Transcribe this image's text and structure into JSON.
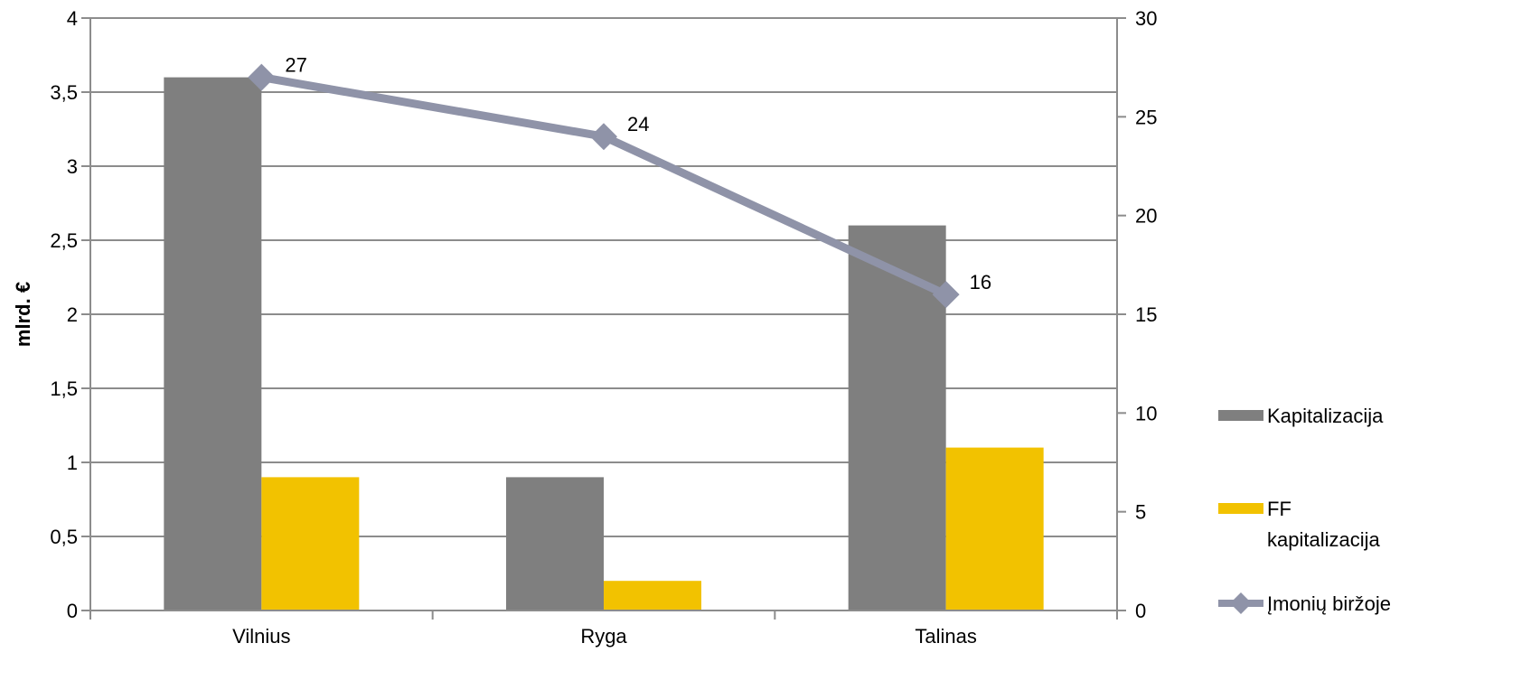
{
  "chart_data": {
    "type": "bar",
    "categories": [
      "Vilnius",
      "Ryga",
      "Talinas"
    ],
    "series": [
      {
        "name": "Kapitalizacija",
        "kind": "bar",
        "axis": "left",
        "color": "#7f7f7f",
        "values": [
          3.6,
          0.9,
          2.6
        ]
      },
      {
        "name": "FF kapitalizacija",
        "kind": "bar",
        "axis": "left",
        "color": "#f2c200",
        "values": [
          0.9,
          0.2,
          1.1
        ]
      },
      {
        "name": "Įmonių biržoje",
        "kind": "line",
        "axis": "right",
        "color": "#8f93a8",
        "values": [
          27,
          24,
          16
        ],
        "data_labels": [
          "27",
          "24",
          "16"
        ]
      }
    ],
    "ylabel": "mlrd. €",
    "ylim": [
      0,
      4
    ],
    "y_ticks": [
      "0",
      "0,5",
      "1",
      "1,5",
      "2",
      "2,5",
      "3",
      "3,5",
      "4"
    ],
    "y2lim": [
      0,
      30
    ],
    "y2_ticks": [
      "0",
      "5",
      "10",
      "15",
      "20",
      "25",
      "30"
    ],
    "grid": true,
    "legend": {
      "placement": "right",
      "items": [
        {
          "label_lines": [
            "Kapitalizacija"
          ],
          "symbol": "bar",
          "color": "#7f7f7f"
        },
        {
          "label_lines": [
            "FF",
            "kapitalizacija"
          ],
          "symbol": "bar",
          "color": "#f2c200"
        },
        {
          "label_lines": [
            "Įmonių biržoje"
          ],
          "symbol": "line-marker",
          "color": "#8f93a8"
        }
      ]
    }
  }
}
